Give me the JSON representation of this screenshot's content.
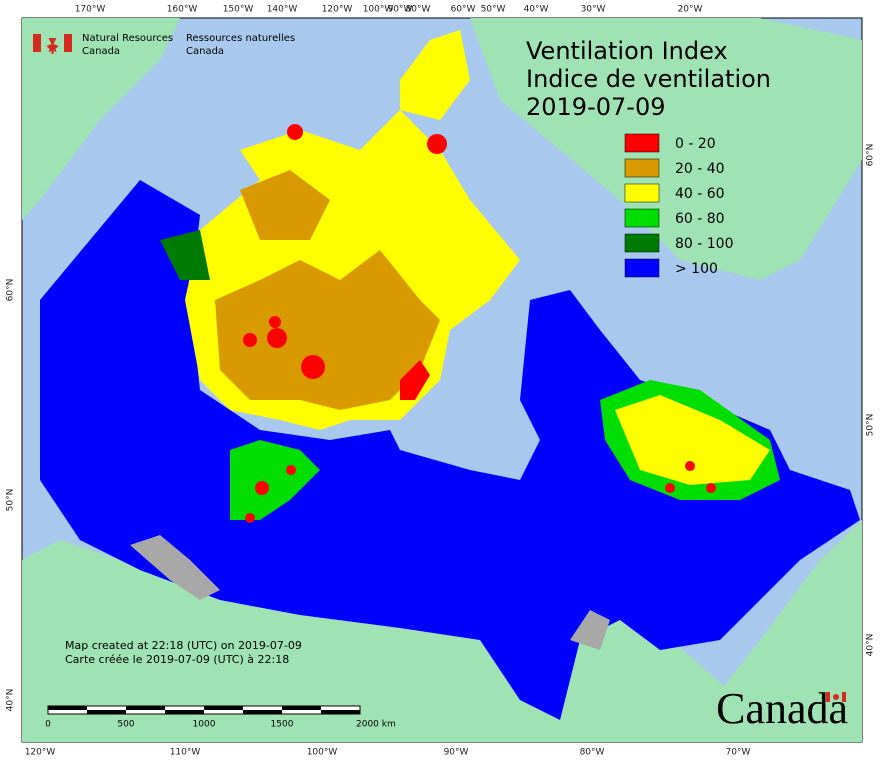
{
  "title": [
    "Ventilation Index",
    "Indice de ventilation",
    "2019-07-09"
  ],
  "agency": {
    "en": [
      "Natural Resources",
      "Canada"
    ],
    "fr": [
      "Ressources naturelles",
      "Canada"
    ]
  },
  "legend": [
    {
      "label": "0 - 20",
      "color": "#ff0000"
    },
    {
      "label": "20 - 40",
      "color": "#d99a00"
    },
    {
      "label": "40 - 60",
      "color": "#ffff00"
    },
    {
      "label": "60 - 80",
      "color": "#00dd00"
    },
    {
      "label": "80 - 100",
      "color": "#007a00"
    },
    {
      "label": "> 100",
      "color": "#0000ff"
    }
  ],
  "credits": [
    "Map created at 22:18 (UTC) on 2019-07-09",
    "Carte créée le 2019-07-09 (UTC) à 22:18"
  ],
  "scale_bar": {
    "labels": [
      "0",
      "500",
      "1000",
      "1500",
      "2000 km"
    ]
  },
  "wordmark": "Canada",
  "graticule": {
    "top": [
      "170°W",
      "160°W",
      "150°W",
      "140°W",
      "120°W",
      "100°W",
      "90°W",
      "80°W",
      "60°W",
      "50°W",
      "40°W",
      "30°W",
      "20°W"
    ],
    "bottom": [
      "120°W",
      "110°W",
      "100°W",
      "90°W",
      "80°W",
      "70°W"
    ],
    "left": [
      "60°N",
      "50°N",
      "40°N"
    ],
    "right": [
      "60°N",
      "50°N",
      "40°N"
    ]
  }
}
